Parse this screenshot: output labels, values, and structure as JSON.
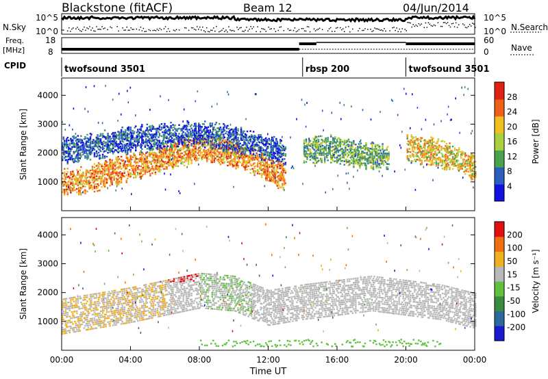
{
  "header": {
    "station": "Blackstone (fitACF)",
    "beam": "Beam 12",
    "date": "04/Jun/2014"
  },
  "side_labels": {
    "nsky": "N.Sky",
    "nsearch": "N.Search",
    "freq": "Freq.",
    "freq_unit": "[MHz]",
    "nave": "Nave",
    "cpid": "CPID"
  },
  "noise_axis": {
    "top": "10^5",
    "bottom": "10^0"
  },
  "freq_axis": {
    "left_top": "18",
    "left_bottom": "8",
    "right_top": "60",
    "right_bottom": "0"
  },
  "cpid_segments": [
    {
      "label": "twofsound 3501",
      "start_hr": 0,
      "end_hr": 14.0
    },
    {
      "label": "rbsp 200",
      "start_hr": 14.0,
      "end_hr": 20.0
    },
    {
      "label": "twofsound 3501",
      "start_hr": 20.0,
      "end_hr": 24
    }
  ],
  "chart_data": [
    {
      "type": "heatmap",
      "panel": "power",
      "ylabel": "Slant Range [km]",
      "colorbar_label": "Power [dB]",
      "ylim": [
        0,
        4600
      ],
      "xlim_hr": [
        0,
        24
      ],
      "yticks": [
        1000,
        2000,
        3000,
        4000
      ],
      "colorbar_ticks": [
        "4",
        "8",
        "12",
        "16",
        "20",
        "24",
        "28"
      ],
      "colors": [
        "#1010e0",
        "#2a5fc0",
        "#3a8a80",
        "#49a24c",
        "#a8d040",
        "#f0c020",
        "#f59020",
        "#f06018",
        "#e02010"
      ],
      "features": [
        {
          "name": "main echo",
          "points": [
            [
              0,
              1000
            ],
            [
              1.5,
              1100
            ],
            [
              3,
              1400
            ],
            [
              5,
              1700
            ],
            [
              6.5,
              2000
            ],
            [
              8,
              2200
            ],
            [
              9.5,
              2100
            ],
            [
              11,
              1800
            ],
            [
              12.5,
              1300
            ],
            [
              13,
              1200
            ]
          ],
          "level": 6
        },
        {
          "name": "upper band",
          "points": [
            [
              0,
              2100
            ],
            [
              2,
              2300
            ],
            [
              4,
              2500
            ],
            [
              6,
              2600
            ],
            [
              8,
              2700
            ],
            [
              10,
              2500
            ],
            [
              12,
              2200
            ],
            [
              13,
              2000
            ]
          ],
          "level": 1
        },
        {
          "name": "late band",
          "points": [
            [
              14,
              2100
            ],
            [
              15.5,
              2200
            ],
            [
              17,
              2000
            ],
            [
              19,
              1900
            ]
          ],
          "level": 3
        },
        {
          "name": "evening",
          "points": [
            [
              20,
              2200
            ],
            [
              21.5,
              2100
            ],
            [
              23,
              1800
            ],
            [
              24,
              1500
            ]
          ],
          "level": 5
        }
      ]
    },
    {
      "type": "heatmap",
      "panel": "velocity",
      "ylabel": "Slant Range [km]",
      "xlabel": "Time UT",
      "colorbar_label": "Velocity [m s⁻¹]",
      "ylim": [
        0,
        4600
      ],
      "xlim_hr": [
        0,
        24
      ],
      "yticks": [
        1000,
        2000,
        3000,
        4000
      ],
      "xticks": [
        "00:00",
        "04:00",
        "08:00",
        "12:00",
        "16:00",
        "20:00",
        "00:00"
      ],
      "colorbar_ticks": [
        "200",
        "100",
        "50",
        "15",
        "-15",
        "-50",
        "-100",
        "-200"
      ],
      "colors": [
        "#1a1ad0",
        "#2a6a9a",
        "#3a8a40",
        "#60c040",
        "#b8b8b8",
        "#f0b020",
        "#f07010",
        "#e01010"
      ]
    }
  ]
}
